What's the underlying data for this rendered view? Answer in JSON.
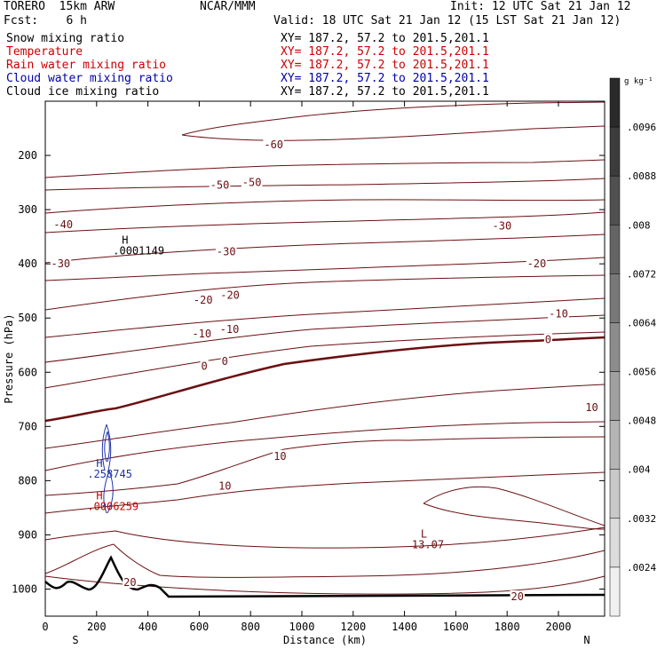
{
  "header": {
    "model": "TORERO  15km ARW",
    "org": "NCAR/MMM",
    "init": "Init: 12 UTC Sat 21 Jan 12",
    "fcst": "Fcst:    6 h",
    "valid": "Valid: 18 UTC Sat 21 Jan 12 (15 LST Sat 21 Jan 12)",
    "fields": [
      {
        "name": "Snow mixing ratio",
        "color": "#000000",
        "xy": "XY= 187.2, 57.2 to 201.5,201.1"
      },
      {
        "name": "Temperature",
        "color": "#cc0000",
        "xy": "XY= 187.2, 57.2 to 201.5,201.1"
      },
      {
        "name": "Rain water mixing ratio",
        "color": "#cc0000",
        "xy": "XY= 187.2, 57.2 to 201.5,201.1"
      },
      {
        "name": "Cloud water mixing ratio",
        "color": "#0000aa",
        "xy": "XY= 187.2, 57.2 to 201.5,201.1"
      },
      {
        "name": "Cloud ice mixing ratio",
        "color": "#000000",
        "xy": "XY= 187.2, 57.2 to 201.5,201.1"
      }
    ]
  },
  "chart_data": {
    "type": "contour-cross-section",
    "xlabel": "Distance (km)",
    "ylabel": "Pressure (hPa)",
    "xlim": [
      0,
      2180
    ],
    "ylim": [
      1050,
      100
    ],
    "x_ticks": [
      0,
      200,
      400,
      600,
      800,
      1000,
      1200,
      1400,
      1600,
      1800,
      2000
    ],
    "y_ticks": [
      200,
      300,
      400,
      500,
      600,
      700,
      800,
      900,
      1000
    ],
    "left_end": "S",
    "right_end": "N",
    "colorbar": {
      "units": "g kg⁻¹",
      "labels": [
        ".0096",
        ".0088",
        ".008",
        ".0072",
        ".0064",
        ".0056",
        ".0048",
        ".004",
        ".0032",
        ".0024"
      ],
      "colors": [
        "#2a2a2a",
        "#3c3c3c",
        "#505050",
        "#646464",
        "#787878",
        "#8c8c8c",
        "#a0a0a0",
        "#b4b4b4",
        "#c8c8c8",
        "#dcdcdc",
        "#f0f0f0"
      ]
    },
    "temperature_contours": {
      "units": "C",
      "labels": [
        {
          "text": "-60",
          "x": 890,
          "p": 180,
          "xl": 890,
          "pl": 160,
          "type": "a"
        },
        {
          "text": "-50",
          "x": 680,
          "p": 255,
          "type": "a"
        },
        {
          "text": "-50",
          "x": 805,
          "p": 250,
          "type": "a"
        },
        {
          "text": "-40",
          "x": 70,
          "p": 328,
          "type": "a"
        },
        {
          "text": "-30",
          "x": 60,
          "p": 400,
          "type": "a"
        },
        {
          "text": "-30",
          "x": 705,
          "p": 378,
          "type": "a"
        },
        {
          "text": "-30",
          "x": 1780,
          "p": 330,
          "type": "a"
        },
        {
          "text": "-20",
          "x": 615,
          "p": 467,
          "type": "a"
        },
        {
          "text": "-20",
          "x": 720,
          "p": 458,
          "type": "a"
        },
        {
          "text": "-20",
          "x": 1915,
          "p": 400,
          "type": "a"
        },
        {
          "text": "-10",
          "x": 610,
          "p": 529,
          "type": "a"
        },
        {
          "text": "-10",
          "x": 718,
          "p": 521,
          "type": "a"
        },
        {
          "text": "-10",
          "x": 2000,
          "p": 492,
          "type": "a"
        },
        {
          "text": "0",
          "x": 620,
          "p": 589,
          "type": "a"
        },
        {
          "text": "0",
          "x": 700,
          "p": 580,
          "type": "a"
        },
        {
          "text": "0",
          "x": 1960,
          "p": 540,
          "type": "a"
        },
        {
          "text": "10",
          "x": 700,
          "p": 810,
          "type": "a"
        },
        {
          "text": "10",
          "x": 915,
          "p": 755,
          "type": "a"
        },
        {
          "text": "10",
          "x": 2130,
          "p": 665,
          "type": "a"
        },
        {
          "text": "20",
          "x": 330,
          "p": 988,
          "type": "a"
        },
        {
          "text": "20",
          "x": 1840,
          "p": 1014,
          "type": "a"
        }
      ]
    },
    "annotations": [
      {
        "text": "H",
        "value": ".0001149",
        "x": 340,
        "p": 363,
        "field": "Snow mixing ratio"
      },
      {
        "text": "H",
        "value": ".258745",
        "x": 240,
        "p": 775,
        "field": "Cloud water mixing ratio"
      },
      {
        "text": "H",
        "value": ".0006259",
        "x": 240,
        "p": 835,
        "field": "Rain water mixing ratio"
      },
      {
        "text": "L",
        "value": "13.07",
        "x": 1505,
        "p": 905,
        "field": "Temperature"
      }
    ]
  }
}
